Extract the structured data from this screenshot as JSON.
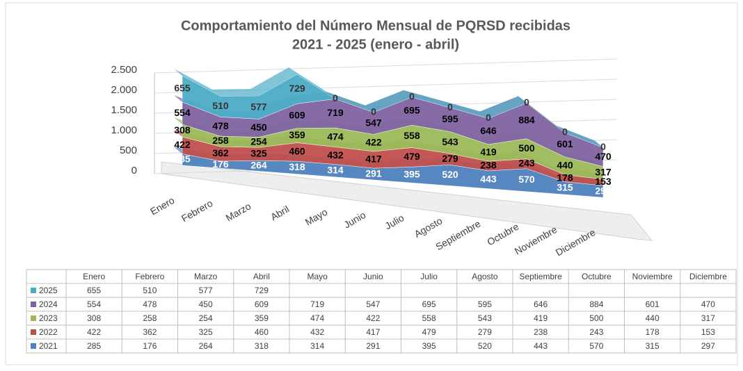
{
  "chart_data": {
    "type": "area",
    "title": "Comportamiento del Número Mensual de PQRSD recibidas",
    "subtitle": "2021 - 2025 (enero - abril)",
    "categories": [
      "Enero",
      "Febrero",
      "Marzo",
      "Abril",
      "Mayo",
      "Junio",
      "Julio",
      "Agosto",
      "Septiembre",
      "Octubre",
      "Noviembre",
      "Diciembre"
    ],
    "stacked": true,
    "ylim": [
      0,
      2500
    ],
    "yticks": [
      0,
      500,
      {
        "value": 1000,
        "label": "1.000"
      },
      {
        "value": 1500,
        "label": "1.500"
      },
      {
        "value": 2000,
        "label": "2.000"
      },
      {
        "value": 2500,
        "label": "2.500"
      }
    ],
    "grid": true,
    "series": [
      {
        "name": "2021",
        "color": "#4f81bd",
        "values": [
          285,
          176,
          264,
          318,
          314,
          291,
          395,
          520,
          443,
          570,
          315,
          297
        ]
      },
      {
        "name": "2022",
        "color": "#c0504d",
        "values": [
          422,
          362,
          325,
          460,
          432,
          417,
          479,
          279,
          238,
          243,
          178,
          153
        ]
      },
      {
        "name": "2023",
        "color": "#9bbb59",
        "values": [
          308,
          258,
          254,
          359,
          474,
          422,
          558,
          543,
          419,
          500,
          440,
          317
        ]
      },
      {
        "name": "2024",
        "color": "#8064a2",
        "values": [
          554,
          478,
          450,
          609,
          719,
          547,
          695,
          595,
          646,
          884,
          601,
          470
        ]
      },
      {
        "name": "2025",
        "color": "#4bacc6",
        "values": [
          655,
          510,
          577,
          729,
          0,
          0,
          0,
          0,
          0,
          0,
          0,
          0
        ]
      }
    ],
    "table": {
      "rows": [
        {
          "name": "2025",
          "values": [
            655,
            510,
            577,
            729,
            null,
            null,
            null,
            null,
            null,
            null,
            null,
            null
          ]
        },
        {
          "name": "2024",
          "values": [
            554,
            478,
            450,
            609,
            719,
            547,
            695,
            595,
            646,
            884,
            601,
            470
          ]
        },
        {
          "name": "2023",
          "values": [
            308,
            258,
            254,
            359,
            474,
            422,
            558,
            543,
            419,
            500,
            440,
            317
          ]
        },
        {
          "name": "2022",
          "values": [
            422,
            362,
            325,
            460,
            432,
            417,
            479,
            279,
            238,
            243,
            178,
            153
          ]
        },
        {
          "name": "2021",
          "values": [
            285,
            176,
            264,
            318,
            314,
            291,
            395,
            520,
            443,
            570,
            315,
            297
          ]
        }
      ]
    }
  }
}
